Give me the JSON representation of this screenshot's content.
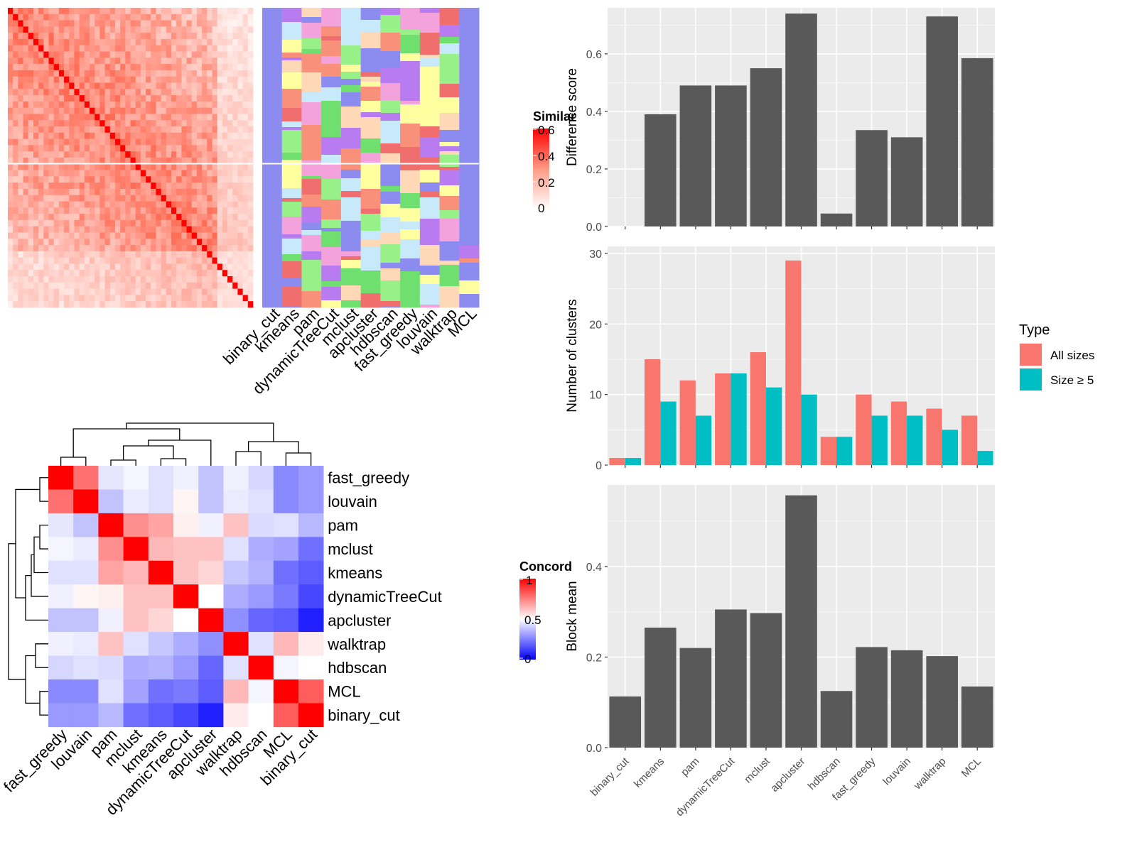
{
  "methods_similarity": [
    "binary_cut",
    "kmeans",
    "pam",
    "dynamicTreeCut",
    "mclust",
    "apcluster",
    "hdbscan",
    "fast_greedy",
    "louvain",
    "walktrap",
    "MCL"
  ],
  "similarity_legend": {
    "title": "Similar",
    "ticks": [
      "0.6",
      "0.4",
      "0.2",
      "0"
    ]
  },
  "concordance_legend": {
    "title": "Concord",
    "ticks": [
      "1",
      "0.5",
      "0"
    ]
  },
  "chart_data": [
    {
      "type": "heatmap",
      "label": "similarity-heatmap",
      "row_split_fraction": 0.52,
      "legend_range": [
        0,
        0.6
      ],
      "colors": {
        "low": "#ffffff",
        "high": "#ff0000"
      }
    },
    {
      "type": "heatmap",
      "label": "cluster-assignment-heatmap",
      "columns": [
        "binary_cut",
        "kmeans",
        "pam",
        "dynamicTreeCut",
        "mclust",
        "apcluster",
        "hdbscan",
        "fast_greedy",
        "louvain",
        "walktrap",
        "MCL"
      ],
      "palette": [
        "#8c8cf0",
        "#98f088",
        "#f4a2dc",
        "#f9907a",
        "#c7e9f9",
        "#b87cf0",
        "#ffffa0",
        "#f06e6e",
        "#ffd8b8",
        "#6fe06f"
      ]
    },
    {
      "type": "heatmap",
      "label": "concordance-heatmap",
      "rows": [
        "fast_greedy",
        "louvain",
        "pam",
        "mclust",
        "kmeans",
        "dynamicTreeCut",
        "apcluster",
        "walktrap",
        "hdbscan",
        "MCL",
        "binary_cut"
      ],
      "columns": [
        "fast_greedy",
        "louvain",
        "pam",
        "mclust",
        "kmeans",
        "dynamicTreeCut",
        "apcluster",
        "walktrap",
        "hdbscan",
        "MCL",
        "binary_cut"
      ],
      "values": [
        [
          1.0,
          0.78,
          0.45,
          0.48,
          0.44,
          0.47,
          0.38,
          0.47,
          0.42,
          0.27,
          0.3
        ],
        [
          0.78,
          1.0,
          0.38,
          0.46,
          0.44,
          0.52,
          0.38,
          0.46,
          0.44,
          0.27,
          0.3
        ],
        [
          0.45,
          0.38,
          1.0,
          0.72,
          0.68,
          0.53,
          0.47,
          0.62,
          0.43,
          0.44,
          0.36
        ],
        [
          0.48,
          0.46,
          0.72,
          1.0,
          0.64,
          0.62,
          0.62,
          0.44,
          0.34,
          0.32,
          0.22
        ],
        [
          0.44,
          0.44,
          0.68,
          0.64,
          1.0,
          0.62,
          0.58,
          0.39,
          0.35,
          0.22,
          0.18
        ],
        [
          0.47,
          0.52,
          0.53,
          0.62,
          0.62,
          1.0,
          0.5,
          0.34,
          0.3,
          0.24,
          0.14
        ],
        [
          0.38,
          0.38,
          0.47,
          0.62,
          0.58,
          0.5,
          1.0,
          0.28,
          0.2,
          0.18,
          0.06
        ],
        [
          0.47,
          0.46,
          0.62,
          0.44,
          0.39,
          0.34,
          0.28,
          1.0,
          0.44,
          0.64,
          0.54
        ],
        [
          0.42,
          0.44,
          0.43,
          0.34,
          0.35,
          0.3,
          0.2,
          0.44,
          1.0,
          0.48,
          0.5
        ],
        [
          0.27,
          0.27,
          0.44,
          0.32,
          0.22,
          0.24,
          0.18,
          0.64,
          0.48,
          1.0,
          0.82
        ],
        [
          0.3,
          0.3,
          0.36,
          0.22,
          0.18,
          0.14,
          0.06,
          0.54,
          0.5,
          0.82,
          1.0
        ]
      ],
      "legend_range": [
        0,
        1
      ],
      "colors": {
        "low": "#0000ff",
        "mid": "#ffffff",
        "high": "#ff0000"
      }
    },
    {
      "type": "bar",
      "label": "difference-score",
      "ylabel": "Difference score",
      "categories": [
        "binary_cut",
        "kmeans",
        "pam",
        "dynamicTreeCut",
        "mclust",
        "apcluster",
        "hdbscan",
        "fast_greedy",
        "louvain",
        "walktrap",
        "MCL"
      ],
      "values": [
        0.0,
        0.39,
        0.49,
        0.49,
        0.55,
        0.74,
        0.045,
        0.335,
        0.31,
        0.73,
        0.585
      ],
      "yticks": [
        0.0,
        0.2,
        0.4,
        0.6
      ],
      "ytick_labels": [
        "0.0",
        "0.2",
        "0.4",
        "0.6"
      ],
      "ylim": [
        0,
        0.76
      ],
      "grid": true
    },
    {
      "type": "bar",
      "label": "number-of-clusters",
      "ylabel": "Number of clusters",
      "categories": [
        "binary_cut",
        "kmeans",
        "pam",
        "dynamicTreeCut",
        "mclust",
        "apcluster",
        "hdbscan",
        "fast_greedy",
        "louvain",
        "walktrap",
        "MCL"
      ],
      "series": [
        {
          "name": "All sizes",
          "color": "#f8766d",
          "values": [
            1,
            15,
            12,
            13,
            16,
            29,
            4,
            10,
            9,
            8,
            7
          ]
        },
        {
          "name": "Size ≥ 5",
          "color": "#00bfc4",
          "values": [
            1,
            9,
            7,
            13,
            11,
            10,
            4,
            7,
            7,
            5,
            2
          ]
        }
      ],
      "yticks": [
        0,
        10,
        20,
        30
      ],
      "ytick_labels": [
        "0",
        "10",
        "20",
        "30"
      ],
      "ylim": [
        0,
        31
      ],
      "legend": {
        "title": "Type",
        "position": "right"
      },
      "grid": true
    },
    {
      "type": "bar",
      "label": "block-mean",
      "ylabel": "Block mean",
      "categories": [
        "binary_cut",
        "kmeans",
        "pam",
        "dynamicTreeCut",
        "mclust",
        "apcluster",
        "hdbscan",
        "fast_greedy",
        "louvain",
        "walktrap",
        "MCL"
      ],
      "values": [
        0.113,
        0.265,
        0.22,
        0.305,
        0.297,
        0.557,
        0.125,
        0.222,
        0.215,
        0.202,
        0.135
      ],
      "yticks": [
        0.0,
        0.2,
        0.4
      ],
      "ytick_labels": [
        "0.0",
        "0.2",
        "0.4"
      ],
      "ylim": [
        0,
        0.58
      ],
      "grid": true
    }
  ]
}
